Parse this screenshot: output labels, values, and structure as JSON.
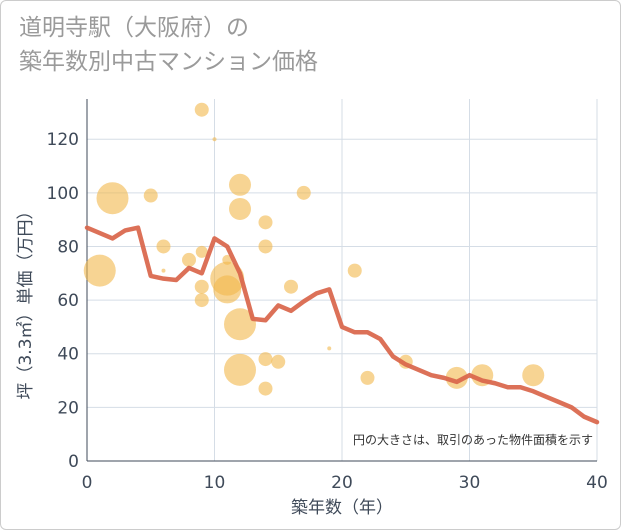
{
  "title": "道明寺駅（大阪府）の\n築年数別中古マンション価格",
  "chart_data": {
    "type": "scatter",
    "title": "道明寺駅（大阪府）の築年数別中古マンション価格",
    "xlabel": "築年数（年）",
    "ylabel": "坪（3.3㎡）単価（万円）",
    "xlim": [
      0,
      40
    ],
    "ylim": [
      0,
      135
    ],
    "xticks": [
      0,
      10,
      20,
      30,
      40
    ],
    "yticks": [
      0,
      20,
      40,
      60,
      80,
      100,
      120
    ],
    "grid": true,
    "note": "円の大きさは、取引のあった物件面積を示す",
    "colors": {
      "bubble": "#f2b84b",
      "line": "#d9654a",
      "grid": "#d5dde6",
      "plot_bg": "#ffffff"
    },
    "points": [
      {
        "x": 1,
        "y": 71,
        "size": 16
      },
      {
        "x": 2,
        "y": 98,
        "size": 16
      },
      {
        "x": 5,
        "y": 99,
        "size": 7
      },
      {
        "x": 6,
        "y": 80,
        "size": 7
      },
      {
        "x": 6,
        "y": 71,
        "size": 2
      },
      {
        "x": 8,
        "y": 75,
        "size": 7
      },
      {
        "x": 9,
        "y": 131,
        "size": 7
      },
      {
        "x": 9,
        "y": 78,
        "size": 6
      },
      {
        "x": 9,
        "y": 65,
        "size": 7
      },
      {
        "x": 9,
        "y": 60,
        "size": 7
      },
      {
        "x": 10,
        "y": 120,
        "size": 2
      },
      {
        "x": 11,
        "y": 75,
        "size": 5
      },
      {
        "x": 11,
        "y": 68,
        "size": 17
      },
      {
        "x": 11,
        "y": 64,
        "size": 14
      },
      {
        "x": 12,
        "y": 103,
        "size": 11
      },
      {
        "x": 12,
        "y": 94,
        "size": 11
      },
      {
        "x": 12,
        "y": 51,
        "size": 16
      },
      {
        "x": 12,
        "y": 34,
        "size": 16
      },
      {
        "x": 14,
        "y": 89,
        "size": 7
      },
      {
        "x": 14,
        "y": 80,
        "size": 7
      },
      {
        "x": 14,
        "y": 38,
        "size": 7
      },
      {
        "x": 14,
        "y": 27,
        "size": 7
      },
      {
        "x": 15,
        "y": 37,
        "size": 7
      },
      {
        "x": 16,
        "y": 65,
        "size": 7
      },
      {
        "x": 17,
        "y": 100,
        "size": 7
      },
      {
        "x": 19,
        "y": 42,
        "size": 2
      },
      {
        "x": 21,
        "y": 71,
        "size": 7
      },
      {
        "x": 22,
        "y": 31,
        "size": 7
      },
      {
        "x": 25,
        "y": 37,
        "size": 7
      },
      {
        "x": 29,
        "y": 31,
        "size": 11
      },
      {
        "x": 31,
        "y": 32,
        "size": 11
      },
      {
        "x": 35,
        "y": 32,
        "size": 11
      }
    ],
    "trend": {
      "x": [
        0,
        1,
        2,
        3,
        4,
        5,
        6,
        7,
        8,
        9,
        10,
        11,
        12,
        13,
        14,
        15,
        16,
        17,
        18,
        19,
        20,
        21,
        22,
        23,
        24,
        25,
        26,
        27,
        28,
        29,
        30,
        31,
        32,
        33,
        34,
        35,
        36,
        37,
        38,
        39,
        40
      ],
      "y": [
        87,
        85,
        83,
        86,
        87,
        69,
        68,
        67.5,
        72,
        70,
        83,
        80,
        70,
        53,
        52.5,
        58,
        56,
        59.5,
        62.5,
        64,
        50,
        48,
        48,
        45.5,
        39,
        36,
        34,
        32,
        31,
        29.5,
        32,
        30,
        29,
        27.5,
        27.5,
        26,
        24,
        22,
        20,
        16.5,
        14.5
      ]
    }
  }
}
